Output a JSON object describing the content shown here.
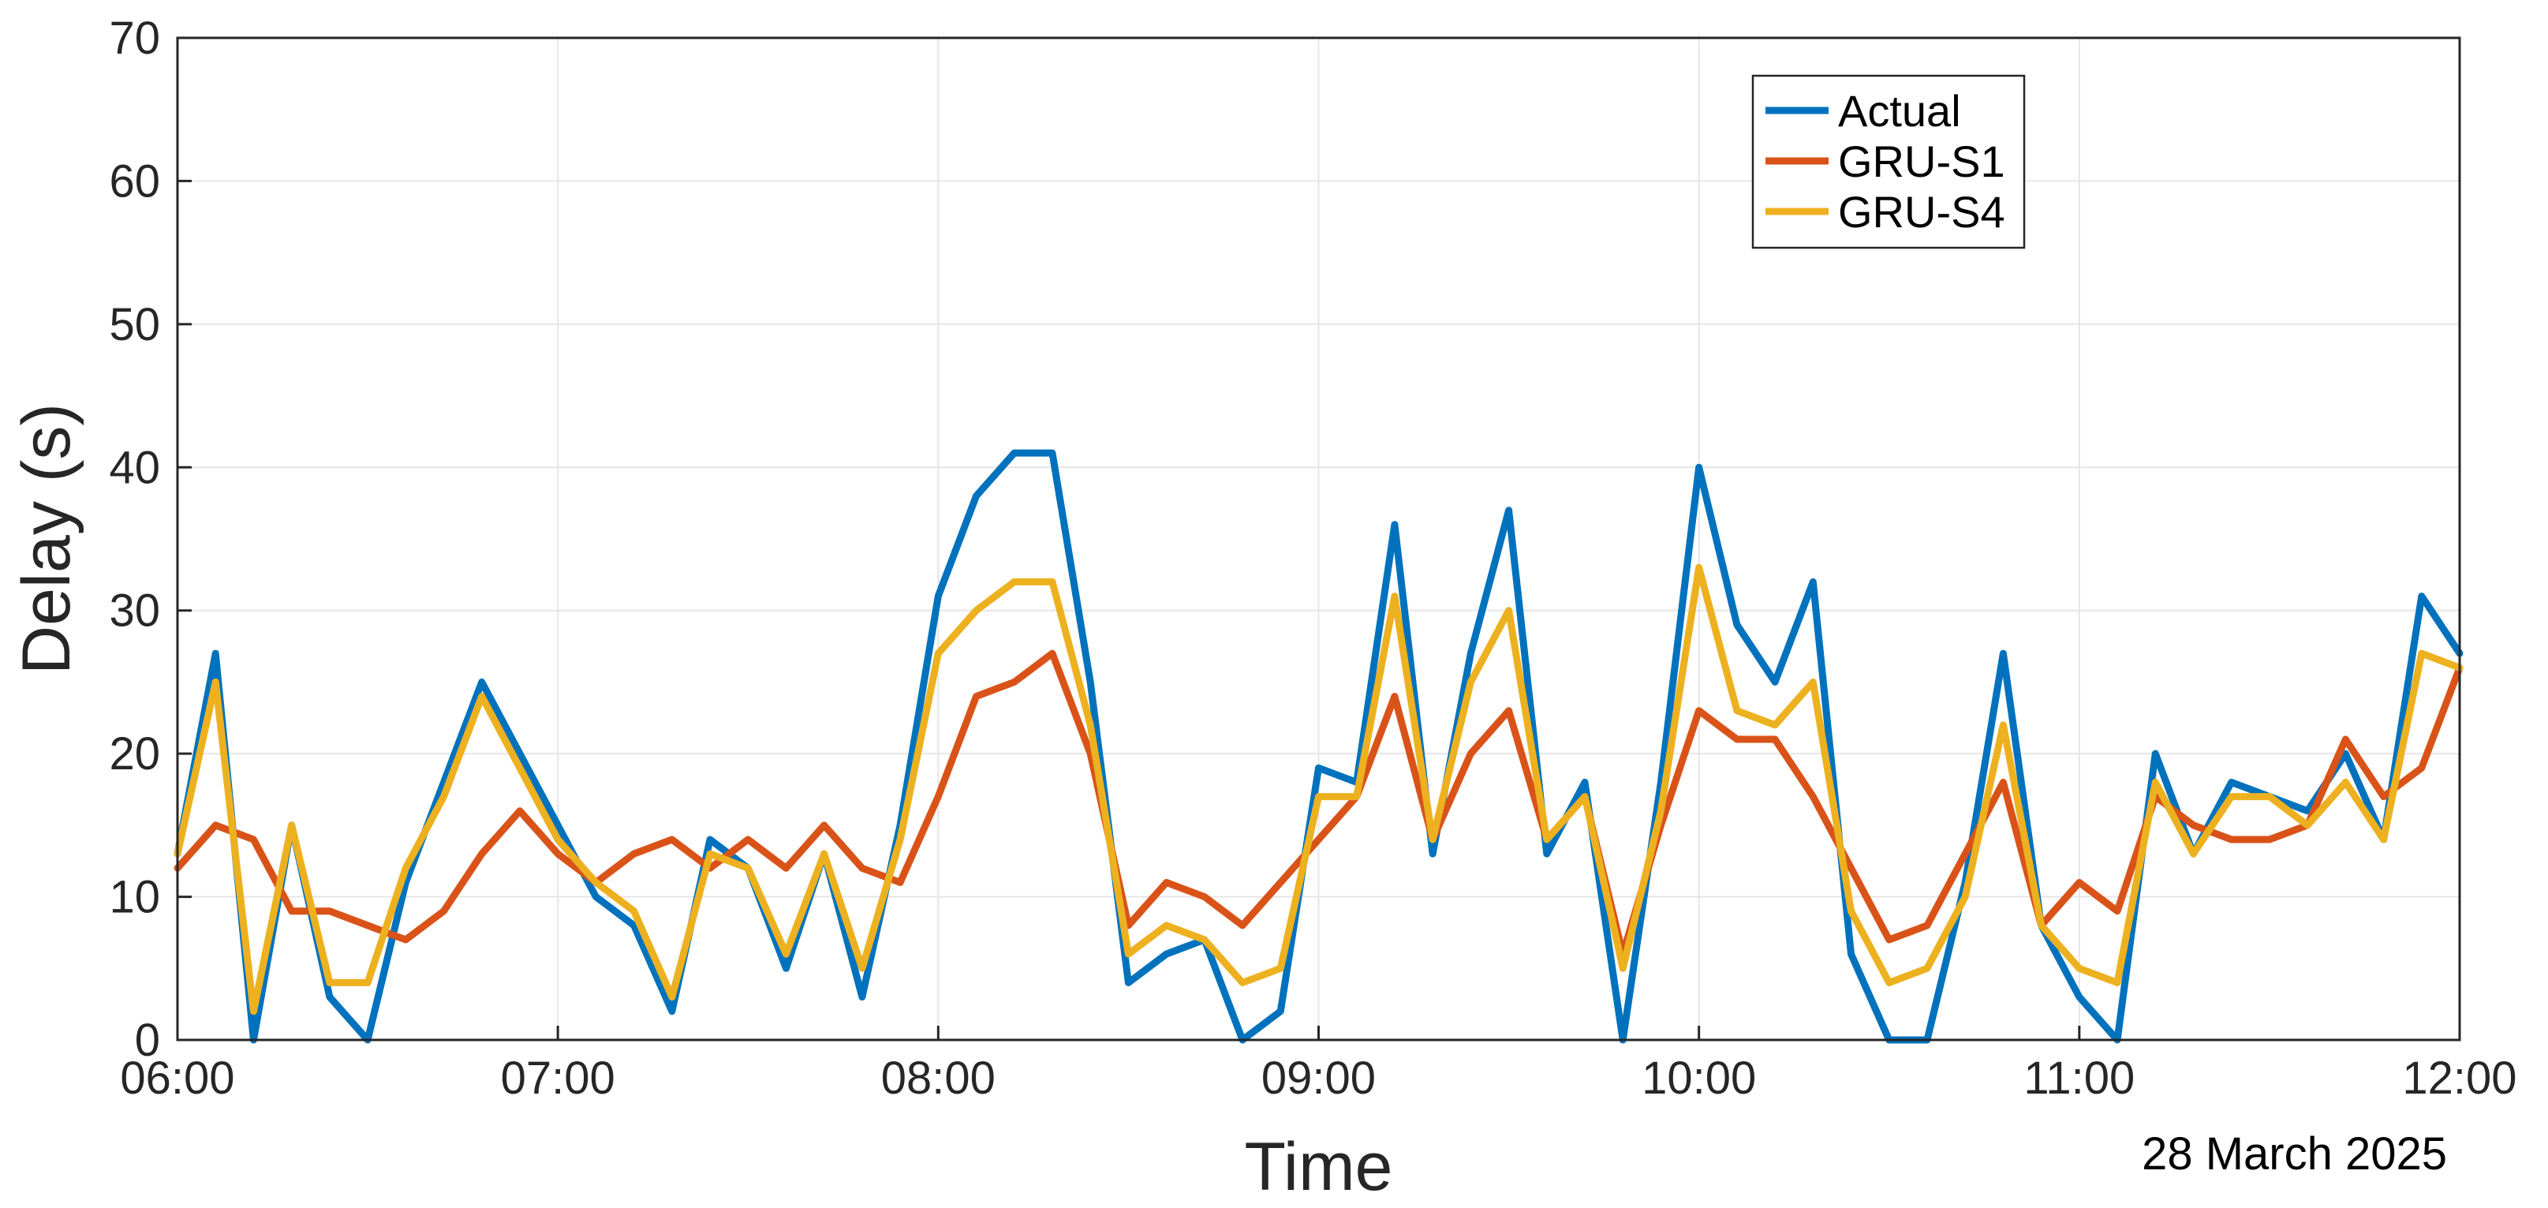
{
  "chart_data": {
    "type": "line",
    "xlabel": "Time",
    "ylabel": "Delay (s)",
    "annotation": "28 March 2025",
    "xlim": [
      "06:00",
      "12:00"
    ],
    "ylim": [
      0,
      70
    ],
    "grid": true,
    "legend_position": "top-right",
    "x_ticks": [
      "06:00",
      "07:00",
      "08:00",
      "09:00",
      "10:00",
      "11:00",
      "12:00"
    ],
    "y_ticks": [
      0,
      10,
      20,
      30,
      40,
      50,
      60,
      70
    ],
    "x": [
      "06:00",
      "06:06",
      "06:12",
      "06:18",
      "06:24",
      "06:30",
      "06:36",
      "06:42",
      "06:48",
      "06:54",
      "07:00",
      "07:06",
      "07:12",
      "07:18",
      "07:24",
      "07:30",
      "07:36",
      "07:42",
      "07:48",
      "07:54",
      "08:00",
      "08:06",
      "08:12",
      "08:18",
      "08:24",
      "08:30",
      "08:36",
      "08:42",
      "08:48",
      "08:54",
      "09:00",
      "09:06",
      "09:12",
      "09:18",
      "09:24",
      "09:30",
      "09:36",
      "09:42",
      "09:48",
      "09:54",
      "10:00",
      "10:06",
      "10:12",
      "10:18",
      "10:24",
      "10:30",
      "10:36",
      "10:42",
      "10:48",
      "10:54",
      "11:00",
      "11:06",
      "11:12",
      "11:18",
      "11:24",
      "11:30",
      "11:36",
      "11:42",
      "11:48",
      "11:54",
      "12:00"
    ],
    "series": [
      {
        "name": "Actual",
        "color": "#0072BD",
        "values": [
          13,
          27,
          0,
          15,
          3,
          0,
          11,
          18,
          25,
          20,
          15,
          10,
          8,
          2,
          14,
          12,
          5,
          13,
          3,
          15,
          31,
          38,
          41,
          41,
          25,
          4,
          6,
          7,
          0,
          2,
          19,
          18,
          36,
          13,
          27,
          37,
          13,
          18,
          0,
          18,
          40,
          29,
          25,
          32,
          6,
          0,
          0,
          11,
          27,
          8,
          3,
          0,
          20,
          13,
          18,
          17,
          16,
          20,
          14,
          31,
          27
        ]
      },
      {
        "name": "GRU-S1",
        "color": "#D95319",
        "values": [
          12,
          15,
          14,
          9,
          9,
          8,
          7,
          9,
          13,
          16,
          13,
          11,
          13,
          14,
          12,
          14,
          12,
          15,
          12,
          11,
          17,
          24,
          25,
          27,
          20,
          8,
          11,
          10,
          8,
          11,
          14,
          17,
          24,
          14,
          20,
          23,
          14,
          17,
          6,
          15,
          23,
          21,
          21,
          17,
          12,
          7,
          8,
          13,
          18,
          8,
          11,
          9,
          17,
          15,
          14,
          14,
          15,
          21,
          17,
          19,
          26
        ]
      },
      {
        "name": "GRU-S4",
        "color": "#EDB120",
        "values": [
          13,
          25,
          2,
          15,
          4,
          4,
          12,
          17,
          24,
          19,
          14,
          11,
          9,
          3,
          13,
          12,
          6,
          13,
          5,
          14,
          27,
          30,
          32,
          32,
          22,
          6,
          8,
          7,
          4,
          5,
          17,
          17,
          31,
          14,
          25,
          30,
          14,
          17,
          5,
          16,
          33,
          23,
          22,
          25,
          9,
          4,
          5,
          10,
          22,
          8,
          5,
          4,
          18,
          13,
          17,
          17,
          15,
          18,
          14,
          27,
          26
        ]
      }
    ]
  }
}
